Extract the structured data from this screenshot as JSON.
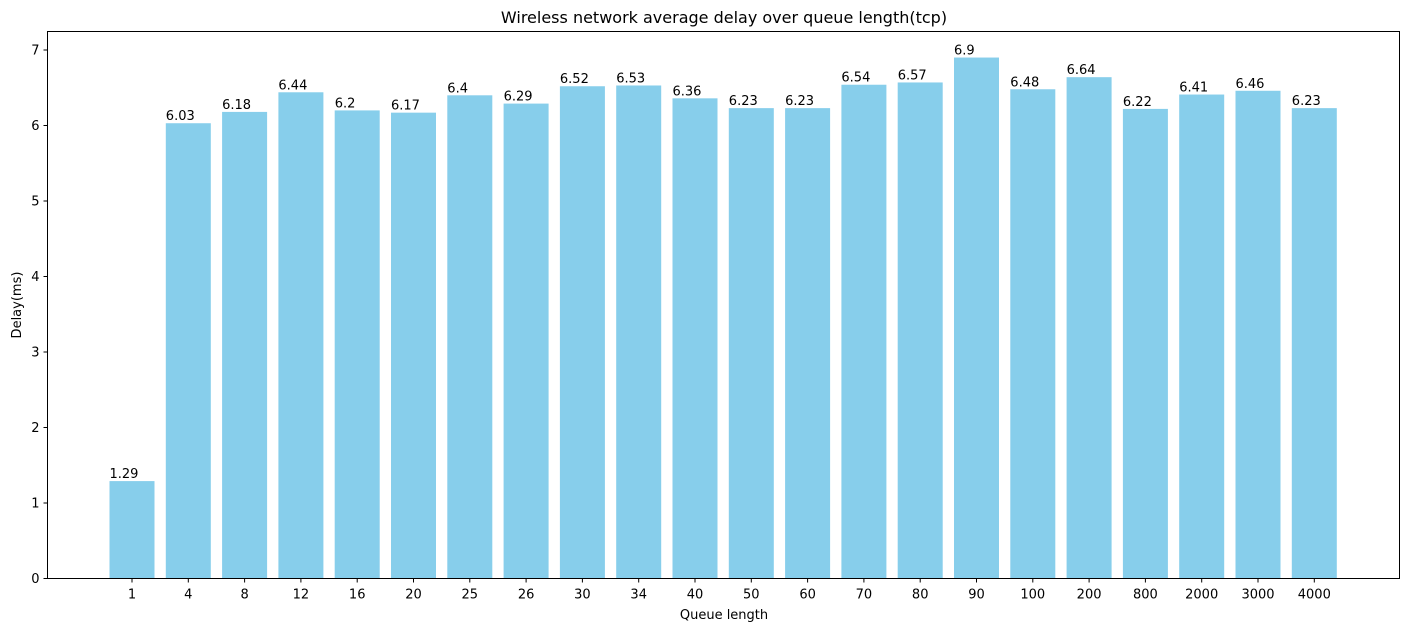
{
  "chart_data": {
    "type": "bar",
    "title": "Wireless network average delay over queue length(tcp)",
    "xlabel": "Queue length",
    "ylabel": "Delay(ms)",
    "categories": [
      "1",
      "4",
      "8",
      "12",
      "16",
      "20",
      "25",
      "26",
      "30",
      "34",
      "40",
      "50",
      "60",
      "70",
      "80",
      "90",
      "100",
      "200",
      "800",
      "2000",
      "3000",
      "4000"
    ],
    "values": [
      1.29,
      6.03,
      6.18,
      6.44,
      6.2,
      6.17,
      6.4,
      6.29,
      6.52,
      6.53,
      6.36,
      6.23,
      6.23,
      6.54,
      6.57,
      6.9,
      6.48,
      6.64,
      6.22,
      6.41,
      6.46,
      6.23
    ],
    "data_labels": [
      "1.29",
      "6.03",
      "6.18",
      "6.44",
      "6.2",
      "6.17",
      "6.4",
      "6.29",
      "6.52",
      "6.53",
      "6.36",
      "6.23",
      "6.23",
      "6.54",
      "6.57",
      "6.9",
      "6.48",
      "6.64",
      "6.22",
      "6.41",
      "6.46",
      "6.23"
    ],
    "yticks": [
      "0",
      "1",
      "2",
      "3",
      "4",
      "5",
      "6",
      "7"
    ],
    "ylim": [
      0,
      7.245
    ],
    "grid": false,
    "colors": {
      "bar": "#87ceeb",
      "axis": "#000000"
    }
  }
}
